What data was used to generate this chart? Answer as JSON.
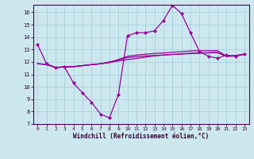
{
  "xlabel": "Windchill (Refroidissement éolien,°C)",
  "bg_color": "#cce8ee",
  "grid_color": "#aacfdc",
  "line_color": "#990099",
  "ylim": [
    7,
    16.6
  ],
  "xlim": [
    -0.5,
    23.5
  ],
  "yticks": [
    7,
    8,
    9,
    10,
    11,
    12,
    13,
    14,
    15,
    16
  ],
  "xticks": [
    0,
    1,
    2,
    3,
    4,
    5,
    6,
    7,
    8,
    9,
    10,
    11,
    12,
    13,
    14,
    15,
    16,
    17,
    18,
    19,
    20,
    21,
    22,
    23
  ],
  "line1_x": [
    0,
    1,
    2,
    3,
    4,
    5,
    6,
    7,
    8,
    9,
    10,
    11,
    12,
    13,
    14,
    15,
    16,
    17,
    18,
    19,
    20,
    21,
    22,
    23
  ],
  "line1_y": [
    13.4,
    11.85,
    11.55,
    11.6,
    10.3,
    9.5,
    8.75,
    7.8,
    7.5,
    9.4,
    14.1,
    14.35,
    14.35,
    14.5,
    15.35,
    16.55,
    15.9,
    14.35,
    12.85,
    12.45,
    12.3,
    12.55,
    12.45,
    12.65
  ],
  "line2_x": [
    0,
    1,
    2,
    3,
    4,
    5,
    6,
    7,
    8,
    9,
    10,
    11,
    12,
    13,
    14,
    15,
    16,
    17,
    18,
    19,
    20,
    21,
    22,
    23
  ],
  "line2_y": [
    11.85,
    11.8,
    11.55,
    11.6,
    11.62,
    11.7,
    11.78,
    11.85,
    11.95,
    12.08,
    12.18,
    12.28,
    12.38,
    12.48,
    12.55,
    12.6,
    12.65,
    12.7,
    12.72,
    12.74,
    12.76,
    12.45,
    12.48,
    12.62
  ],
  "line3_x": [
    0,
    1,
    2,
    3,
    4,
    5,
    6,
    7,
    8,
    9,
    10,
    11,
    12,
    13,
    14,
    15,
    16,
    17,
    18,
    19,
    20,
    21,
    22,
    23
  ],
  "line3_y": [
    11.85,
    11.8,
    11.55,
    11.6,
    11.62,
    11.7,
    11.78,
    11.85,
    11.95,
    12.2,
    12.45,
    12.55,
    12.62,
    12.68,
    12.72,
    12.78,
    12.82,
    12.88,
    12.9,
    12.9,
    12.9,
    12.48,
    12.52,
    12.62
  ],
  "line4_x": [
    0,
    1,
    2,
    3,
    4,
    5,
    6,
    7,
    8,
    9,
    10,
    11,
    12,
    13,
    14,
    15,
    16,
    17,
    18,
    19,
    20,
    21,
    22,
    23
  ],
  "line4_y": [
    11.85,
    11.8,
    11.55,
    11.6,
    11.62,
    11.7,
    11.78,
    11.85,
    12.0,
    12.15,
    12.35,
    12.42,
    12.48,
    12.52,
    12.56,
    12.6,
    12.63,
    12.67,
    12.7,
    12.72,
    12.75,
    12.45,
    12.48,
    12.62
  ]
}
